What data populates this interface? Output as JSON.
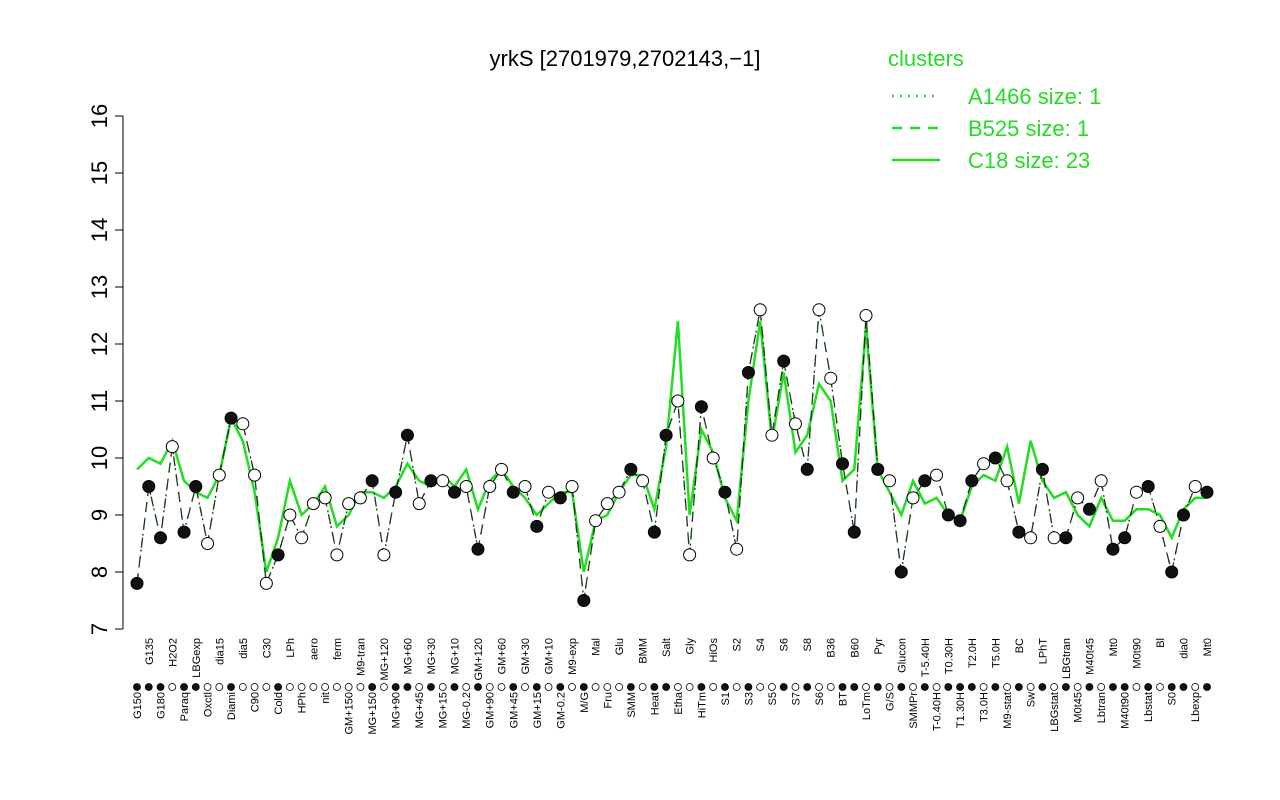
{
  "chart_data": {
    "type": "line",
    "title": "yrkS [2701979,2702143,−1]",
    "legend_title": "clusters",
    "legend_position": "top-right",
    "ylim": [
      7,
      16
    ],
    "yticks": [
      7,
      8,
      9,
      10,
      11,
      12,
      13,
      14,
      15,
      16
    ],
    "categories": [
      "G150",
      "G135",
      "G180",
      "H2O2",
      "Paraq",
      "LBGexp",
      "Oxctl",
      "dia15",
      "Diami",
      "dia5",
      "C90",
      "C30",
      "Cold",
      "LPh",
      "HPh",
      "aero",
      "nit",
      "ferm",
      "GM+150",
      "M9-tran",
      "MG+150",
      "MG+120",
      "MG+90",
      "MG+60",
      "MG+45",
      "MG+30",
      "MG+15",
      "MG+10",
      "MG-0.2",
      "GM+120",
      "GM+90",
      "GM+60",
      "GM+45",
      "GM+30",
      "GM+15",
      "GM+10",
      "GM-0.2",
      "M9-exp",
      "M/G",
      "Mal",
      "Fru",
      "Glu",
      "SMM",
      "BMM",
      "Heat",
      "Salt",
      "Etha",
      "Gly",
      "HiTm",
      "HiOs",
      "S1",
      "S2",
      "S3",
      "S4",
      "S5",
      "S6",
      "S7",
      "S8",
      "S6",
      "B36",
      "BT",
      "B60",
      "LoTm",
      "Pyr",
      "G/S",
      "Glucon",
      "SMMPr",
      "T-5.40H",
      "T-0.40H",
      "T0.30H",
      "T1.30H",
      "T2.0H",
      "T3.0H",
      "T5.0H",
      "M9-stat",
      "BC",
      "Sw",
      "LPhT",
      "LBGstat",
      "LBGtran",
      "M0t45",
      "M40t45",
      "Lbtran",
      "Mt0",
      "M40t90",
      "M0t90",
      "Lbstat",
      "Bl",
      "S0",
      "dia0",
      "Lbexp",
      "Mt0"
    ],
    "point_colors": [
      "#111",
      "#111",
      "#111",
      "#fff",
      "#111",
      "#111",
      "#fff",
      "#fff",
      "#111",
      "#fff",
      "#fff",
      "#fff",
      "#111",
      "#fff",
      "#fff",
      "#fff",
      "#fff",
      "#fff",
      "#fff",
      "#fff",
      "#111",
      "#fff",
      "#111",
      "#111",
      "#fff",
      "#111",
      "#fff",
      "#111",
      "#fff",
      "#111",
      "#fff",
      "#fff",
      "#111",
      "#fff",
      "#111",
      "#fff",
      "#111",
      "#fff",
      "#111",
      "#fff",
      "#fff",
      "#fff",
      "#111",
      "#fff",
      "#111",
      "#111",
      "#fff",
      "#fff",
      "#111",
      "#fff",
      "#111",
      "#fff",
      "#111",
      "#fff",
      "#fff",
      "#111",
      "#fff",
      "#111",
      "#fff",
      "#fff",
      "#111",
      "#111",
      "#fff",
      "#111",
      "#fff",
      "#111",
      "#fff",
      "#111",
      "#fff",
      "#111",
      "#111",
      "#111",
      "#fff",
      "#111",
      "#fff",
      "#111",
      "#fff",
      "#111",
      "#fff",
      "#111",
      "#fff",
      "#111",
      "#fff",
      "#111",
      "#111",
      "#fff",
      "#111",
      "#fff",
      "#111",
      "#111",
      "#fff",
      "#111"
    ],
    "series": [
      {
        "name": "A1466 size: 1",
        "color": "#22dd22",
        "style": "dotted",
        "values": [
          7.8,
          9.5,
          8.6,
          10.2,
          8.7,
          9.5,
          8.5,
          9.7,
          10.7,
          10.6,
          9.7,
          7.8,
          8.3,
          9.0,
          8.6,
          9.2,
          9.3,
          8.3,
          9.2,
          9.3,
          9.6,
          8.3,
          9.4,
          10.4,
          9.2,
          9.6,
          9.6,
          9.4,
          9.5,
          8.4,
          9.5,
          9.8,
          9.4,
          9.5,
          8.8,
          9.4,
          9.3,
          9.5,
          7.5,
          8.9,
          9.2,
          9.4,
          9.8,
          9.6,
          8.7,
          10.4,
          11.0,
          8.3,
          10.9,
          10.0,
          9.4,
          8.4,
          11.5,
          12.6,
          10.4,
          11.7,
          10.6,
          9.8,
          12.6,
          11.4,
          9.9,
          8.7,
          12.5,
          9.8,
          9.6,
          8.0,
          9.3,
          9.6,
          9.7,
          9.0,
          8.9,
          9.6,
          9.9,
          10.0,
          9.6,
          8.7,
          8.6,
          9.8,
          8.6,
          8.6,
          9.3,
          9.1,
          9.6,
          8.4,
          8.6,
          9.4,
          9.5,
          8.8,
          8.0,
          9.0,
          9.5,
          9.4
        ]
      },
      {
        "name": "B525 size: 1",
        "color": "#22dd22",
        "style": "dashed",
        "values": [
          7.8,
          9.5,
          8.6,
          10.2,
          8.7,
          9.5,
          8.5,
          9.7,
          10.7,
          10.6,
          9.7,
          7.8,
          8.3,
          9.0,
          8.6,
          9.2,
          9.3,
          8.3,
          9.2,
          9.3,
          9.6,
          8.3,
          9.4,
          10.4,
          9.2,
          9.6,
          9.6,
          9.4,
          9.5,
          8.4,
          9.5,
          9.8,
          9.4,
          9.5,
          8.8,
          9.4,
          9.3,
          9.5,
          7.5,
          8.9,
          9.2,
          9.4,
          9.8,
          9.6,
          8.7,
          10.4,
          11.0,
          8.3,
          10.9,
          10.0,
          9.4,
          8.4,
          11.5,
          12.6,
          10.4,
          11.7,
          10.6,
          9.8,
          12.6,
          11.4,
          9.9,
          8.7,
          12.5,
          9.8,
          9.6,
          8.0,
          9.3,
          9.6,
          9.7,
          9.0,
          8.9,
          9.6,
          9.9,
          10.0,
          9.6,
          8.7,
          8.6,
          9.8,
          8.6,
          8.6,
          9.3,
          9.1,
          9.6,
          8.4,
          8.6,
          9.4,
          9.5,
          8.8,
          8.0,
          9.0,
          9.5,
          9.4
        ]
      },
      {
        "name": "C18 size: 23",
        "color": "#22dd22",
        "style": "solid",
        "values": [
          9.8,
          10.0,
          9.9,
          10.3,
          9.6,
          9.4,
          9.3,
          9.7,
          10.7,
          10.3,
          9.4,
          8.0,
          8.6,
          9.6,
          9.0,
          9.2,
          9.5,
          8.8,
          9.0,
          9.4,
          9.4,
          9.3,
          9.5,
          9.9,
          9.6,
          9.5,
          9.7,
          9.5,
          9.8,
          9.1,
          9.6,
          9.8,
          9.5,
          9.3,
          9.0,
          9.2,
          9.4,
          9.4,
          8.0,
          8.9,
          9.0,
          9.4,
          9.7,
          9.7,
          9.1,
          10.2,
          12.4,
          9.0,
          10.5,
          10.1,
          9.3,
          8.9,
          11.0,
          12.4,
          10.3,
          11.5,
          10.1,
          10.4,
          11.3,
          11.0,
          9.6,
          9.8,
          12.3,
          9.8,
          9.4,
          9.0,
          9.6,
          9.2,
          9.3,
          9.0,
          8.9,
          9.5,
          9.7,
          9.6,
          10.2,
          9.2,
          10.3,
          9.6,
          9.3,
          9.4,
          9.0,
          8.8,
          9.3,
          8.9,
          8.9,
          9.1,
          9.1,
          9.0,
          8.6,
          9.1,
          9.3,
          9.3
        ]
      }
    ]
  }
}
